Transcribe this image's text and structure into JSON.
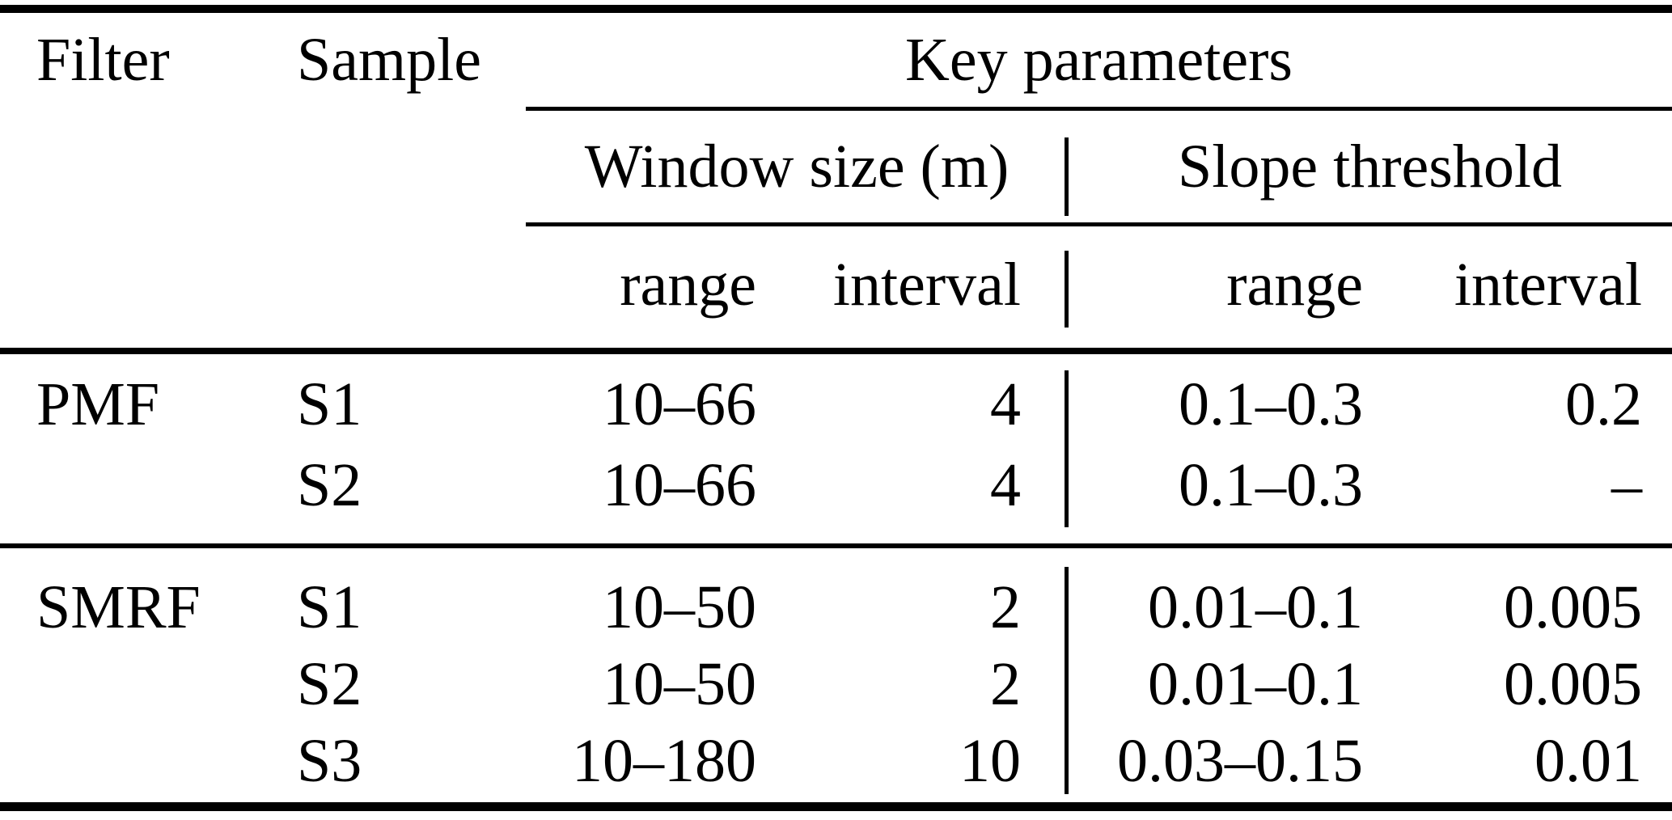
{
  "table": {
    "headers": {
      "filter": "Filter",
      "sample": "Sample",
      "key_parameters": "Key parameters",
      "window_size": "Window size (m)",
      "slope_threshold": "Slope threshold",
      "window_range": "range",
      "window_interval": "interval",
      "slope_range": "range",
      "slope_interval": "interval"
    },
    "rows": [
      {
        "filter": "PMF",
        "sample": "S1",
        "window_range": "10–66",
        "window_interval": "4",
        "slope_range": "0.1–0.3",
        "slope_interval": "0.2"
      },
      {
        "filter": "",
        "sample": "S2",
        "window_range": "10–66",
        "window_interval": "4",
        "slope_range": "0.1–0.3",
        "slope_interval": "–"
      },
      {
        "filter": "SMRF",
        "sample": "S1",
        "window_range": "10–50",
        "window_interval": "2",
        "slope_range": "0.01–0.1",
        "slope_interval": "0.005"
      },
      {
        "filter": "",
        "sample": "S2",
        "window_range": "10–50",
        "window_interval": "2",
        "slope_range": "0.01–0.1",
        "slope_interval": "0.005"
      },
      {
        "filter": "",
        "sample": "S3",
        "window_range": "10–180",
        "window_interval": "10",
        "slope_range": "0.03–0.15",
        "slope_interval": "0.01"
      }
    ],
    "colors": {
      "text": "#000000",
      "background": "#ffffff",
      "rule": "#000000"
    }
  }
}
